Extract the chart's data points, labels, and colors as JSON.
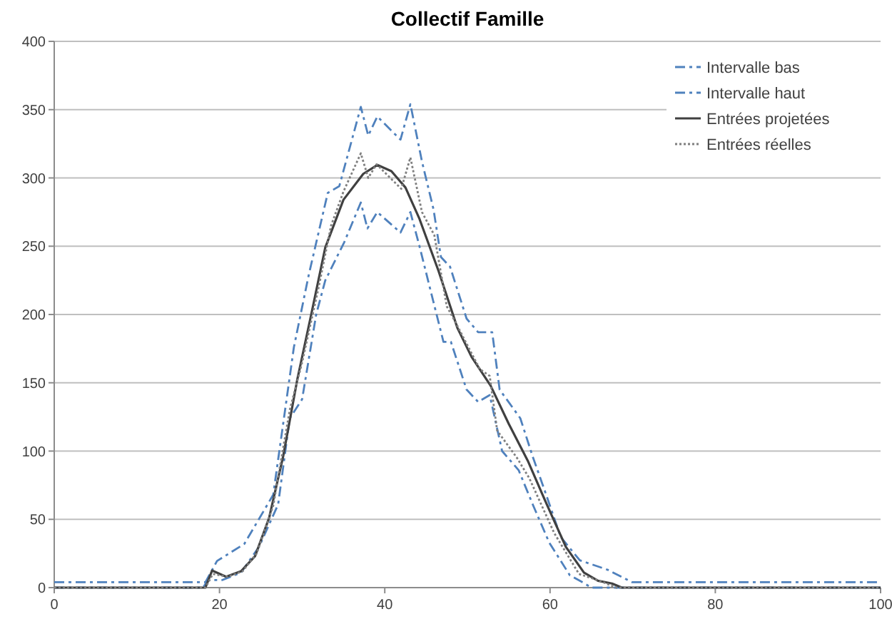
{
  "chart_data": {
    "type": "line",
    "title": "Collectif Famille",
    "xlim": [
      0,
      100
    ],
    "ylim": [
      0,
      400
    ],
    "xticks": [
      0,
      20,
      40,
      60,
      80,
      100
    ],
    "yticks": [
      0,
      50,
      100,
      150,
      200,
      250,
      300,
      350,
      400
    ],
    "grid": "y",
    "legend": "top right",
    "series": [
      {
        "name": "Intervalle bas",
        "color": "#4f81bd",
        "line_style": "dashed",
        "x": [
          0,
          18,
          18.6,
          20.3,
          22.6,
          24.8,
          27.1,
          28.5,
          30,
          31.7,
          32.8,
          35.1,
          37.1,
          37.9,
          39.1,
          41.9,
          43.1,
          44.2,
          45.4,
          47.1,
          48,
          49.9,
          51.3,
          52.7,
          54.2,
          56.2,
          57.9,
          59.9,
          62.4,
          63.9,
          65,
          100
        ],
        "values": [
          0,
          0,
          5.5,
          5.5,
          11,
          30,
          61,
          124,
          138,
          200,
          225,
          253,
          282,
          263,
          275,
          260,
          275,
          250,
          221,
          180,
          180,
          145,
          136,
          141,
          100,
          86,
          61,
          33,
          9,
          4,
          0,
          0
        ]
      },
      {
        "name": "Intervalle haut",
        "color": "#4f81bd",
        "line_style": "dashed",
        "x": [
          0,
          18.3,
          19.7,
          23,
          26.5,
          29,
          30.8,
          33.1,
          34.5,
          37.1,
          38,
          39.1,
          41.9,
          43.1,
          44.5,
          45.9,
          46.8,
          47.9,
          49.9,
          51.3,
          53,
          53.9,
          56.4,
          57.9,
          59.3,
          61.3,
          63.6,
          67,
          69.9,
          100
        ],
        "values": [
          4,
          4,
          19.5,
          32,
          68,
          176,
          229,
          289,
          294,
          352,
          331,
          345,
          328,
          354,
          312,
          277,
          242,
          235,
          197,
          187,
          187,
          145,
          124,
          96,
          72,
          37,
          20,
          13,
          4,
          4
        ]
      },
      {
        "name": "Entrées projetées",
        "color": "#404040",
        "line_style": "solid",
        "x": [
          0,
          18.3,
          19.1,
          20.8,
          22.6,
          24.3,
          26,
          27.7,
          29.4,
          31.1,
          32.8,
          35,
          37.4,
          39.1,
          40.8,
          42.5,
          44.2,
          46.5,
          48.8,
          50.5,
          52.8,
          55,
          57.3,
          59.6,
          61.9,
          64.1,
          65.8,
          67.5,
          68.7,
          100
        ],
        "values": [
          0,
          0,
          12.5,
          8,
          12,
          23,
          51,
          96,
          152,
          200,
          249,
          284,
          303,
          309.5,
          305,
          293,
          270,
          232,
          190,
          169,
          148,
          120,
          93,
          61,
          30,
          11,
          5,
          3,
          0,
          0
        ]
      },
      {
        "name": "Entrées réelles",
        "color": "#7f7f7f",
        "line_style": "dotted",
        "x": [
          0,
          18.3,
          19.2,
          21,
          22.8,
          24.5,
          26.5,
          28.5,
          30,
          32,
          33.5,
          35,
          37.1,
          38,
          39,
          42,
          43.1,
          44.5,
          46,
          47.5,
          48.5,
          51.5,
          52.7,
          53.6,
          56,
          57.5,
          60.5,
          63.5,
          66,
          68,
          100
        ],
        "values": [
          0,
          0,
          10,
          8,
          12,
          25,
          60,
          130,
          165,
          220,
          265,
          290,
          318,
          300,
          310,
          292,
          315,
          275,
          258,
          206,
          195,
          160,
          155,
          115,
          95,
          80,
          40,
          10,
          5,
          0,
          0
        ]
      }
    ]
  }
}
